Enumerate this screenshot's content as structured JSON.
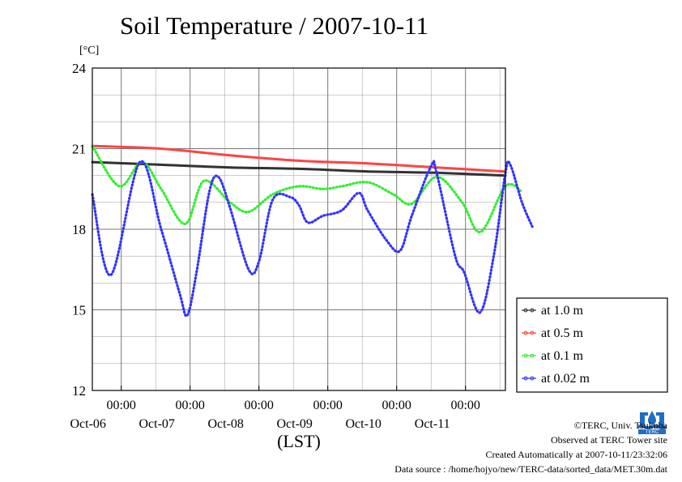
{
  "chart_data": {
    "type": "line",
    "title": "Soil Temperature / 2007-10-11",
    "ylabel": "[°C]",
    "xlabel": "(LST)",
    "ylim": [
      12,
      24
    ],
    "yticks": [
      12,
      15,
      18,
      21,
      24
    ],
    "x_unit": "days since 2007-10-05 00:00 (LST)",
    "xlim": [
      0.58,
      6.58
    ],
    "xticks": [
      {
        "at": 1,
        "time": "00:00",
        "date": "Oct-06"
      },
      {
        "at": 2,
        "time": "00:00",
        "date": "Oct-07"
      },
      {
        "at": 3,
        "time": "00:00",
        "date": "Oct-08"
      },
      {
        "at": 4,
        "time": "00:00",
        "date": "Oct-09"
      },
      {
        "at": 5,
        "time": "00:00",
        "date": "Oct-10"
      },
      {
        "at": 6,
        "time": "00:00",
        "date": "Oct-11"
      }
    ],
    "grid": true,
    "legend_position": "right",
    "series": [
      {
        "name": "at 1.0 m",
        "color": "#333333",
        "points": [
          [
            0.58,
            20.5
          ],
          [
            1.58,
            20.4
          ],
          [
            2.58,
            20.3
          ],
          [
            3.58,
            20.25
          ],
          [
            4.58,
            20.15
          ],
          [
            5.58,
            20.1
          ],
          [
            6.58,
            20.0
          ]
        ]
      },
      {
        "name": "at 0.5 m",
        "color": "#ff4444",
        "points": [
          [
            0.58,
            21.1
          ],
          [
            1.58,
            21.0
          ],
          [
            2.58,
            20.75
          ],
          [
            3.58,
            20.55
          ],
          [
            4.58,
            20.45
          ],
          [
            5.58,
            20.3
          ],
          [
            6.58,
            20.15
          ]
        ]
      },
      {
        "name": "at 0.1 m",
        "color": "#33ee33",
        "points": [
          [
            0.58,
            21.1
          ],
          [
            0.97,
            19.6
          ],
          [
            1.3,
            20.5
          ],
          [
            1.58,
            19.5
          ],
          [
            1.93,
            18.2
          ],
          [
            2.2,
            19.8
          ],
          [
            2.58,
            19.0
          ],
          [
            2.85,
            18.65
          ],
          [
            3.2,
            19.3
          ],
          [
            3.58,
            19.6
          ],
          [
            3.93,
            19.5
          ],
          [
            4.2,
            19.6
          ],
          [
            4.58,
            19.75
          ],
          [
            4.95,
            19.3
          ],
          [
            5.22,
            18.95
          ],
          [
            5.58,
            19.95
          ],
          [
            5.95,
            19.0
          ],
          [
            6.22,
            17.9
          ],
          [
            6.58,
            19.6
          ],
          [
            6.82,
            19.4
          ]
        ]
      },
      {
        "name": "at 0.02 m",
        "color": "#3333ff",
        "points": [
          [
            0.58,
            19.3
          ],
          [
            0.85,
            16.3
          ],
          [
            1.27,
            20.5
          ],
          [
            1.58,
            18.0
          ],
          [
            1.85,
            15.6
          ],
          [
            1.96,
            14.8
          ],
          [
            2.1,
            16.5
          ],
          [
            2.28,
            19.4
          ],
          [
            2.41,
            19.95
          ],
          [
            2.58,
            18.8
          ],
          [
            2.85,
            16.5
          ],
          [
            3.0,
            16.8
          ],
          [
            3.2,
            19.1
          ],
          [
            3.45,
            19.2
          ],
          [
            3.58,
            18.9
          ],
          [
            3.71,
            18.25
          ],
          [
            3.93,
            18.5
          ],
          [
            4.2,
            18.7
          ],
          [
            4.45,
            19.35
          ],
          [
            4.58,
            18.7
          ],
          [
            4.85,
            17.6
          ],
          [
            5.05,
            17.2
          ],
          [
            5.22,
            18.5
          ],
          [
            5.5,
            20.35
          ],
          [
            5.58,
            20.1
          ],
          [
            5.85,
            17.0
          ],
          [
            5.98,
            16.4
          ],
          [
            6.21,
            14.9
          ],
          [
            6.41,
            17.0
          ],
          [
            6.58,
            20.1
          ],
          [
            6.65,
            20.4
          ],
          [
            6.82,
            19.0
          ],
          [
            6.97,
            18.1
          ]
        ]
      }
    ]
  },
  "credits": {
    "copyright": "©TERC, Univ. Tsukuba",
    "observed": "Observed at TERC Tower site",
    "created": "Created Automatically at 2007-10-11/23:32:06",
    "source": "Data source : /home/hojyo/new/TERC-data/sorted_data/MET.30m.dat",
    "logo_text": "TERC"
  },
  "colors": {
    "grid": "#999999",
    "axis": "#000000",
    "legend_border": "#000000"
  }
}
